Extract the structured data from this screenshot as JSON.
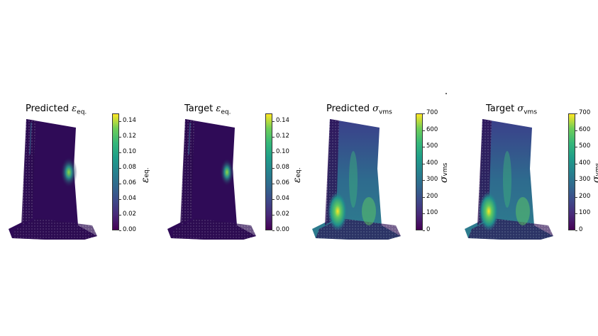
{
  "chart_data": [
    {
      "type": "heatmap",
      "title": "Predicted ε_eq.",
      "title_prefix": "Predicted",
      "symbol": "ε",
      "subscript": "eq.",
      "colorbar_label": "ε_eq.",
      "colormap": "viridis",
      "range": [
        0,
        0.14
      ],
      "ticks": [
        "0.00",
        "0.02",
        "0.04",
        "0.06",
        "0.08",
        "0.10",
        "0.12",
        "0.14"
      ],
      "tick_values": [
        0,
        0.02,
        0.04,
        0.06,
        0.08,
        0.1,
        0.12,
        0.14
      ],
      "cmax": 0.15
    },
    {
      "type": "heatmap",
      "title": "Target ε_eq.",
      "title_prefix": "Target",
      "symbol": "ε",
      "subscript": "eq.",
      "colorbar_label": "ε_eq.",
      "colormap": "viridis",
      "range": [
        0,
        0.14
      ],
      "ticks": [
        "0.00",
        "0.02",
        "0.04",
        "0.06",
        "0.08",
        "0.10",
        "0.12",
        "0.14"
      ],
      "tick_values": [
        0,
        0.02,
        0.04,
        0.06,
        0.08,
        0.1,
        0.12,
        0.14
      ],
      "cmax": 0.15
    },
    {
      "type": "heatmap",
      "title": "Predicted σ_vms",
      "title_prefix": "Predicted",
      "symbol": "σ",
      "subscript": "vms",
      "colorbar_label": "σ_vms",
      "colormap": "viridis",
      "range": [
        0,
        700
      ],
      "ticks": [
        "0",
        "100",
        "200",
        "300",
        "400",
        "500",
        "600",
        "700"
      ],
      "tick_values": [
        0,
        100,
        200,
        300,
        400,
        500,
        600,
        700
      ],
      "cmax": 700
    },
    {
      "type": "heatmap",
      "title": "Target σ_vms",
      "title_prefix": "Target",
      "symbol": "σ",
      "subscript": "vms",
      "colorbar_label": "σ_vms",
      "colormap": "viridis",
      "range": [
        0,
        700
      ],
      "ticks": [
        "0",
        "100",
        "200",
        "300",
        "400",
        "500",
        "600",
        "700"
      ],
      "tick_values": [
        0,
        100,
        200,
        300,
        400,
        500,
        600,
        700
      ],
      "cmax": 700
    }
  ],
  "colors": {
    "viridis_low": "#440154",
    "viridis_mid": "#21918c",
    "viridis_high": "#fde725"
  }
}
